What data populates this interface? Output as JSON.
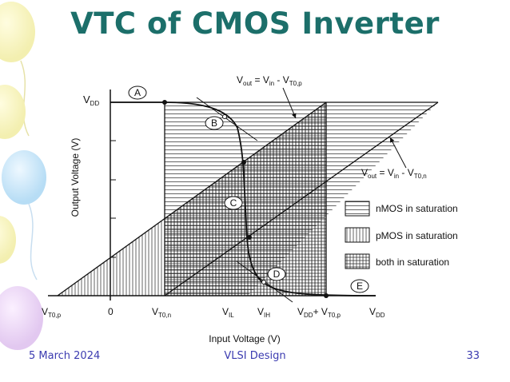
{
  "slide": {
    "title": "VTC of CMOS Inverter",
    "footer": {
      "date": "5 March 2024",
      "course": "VLSI Design",
      "page": "33"
    }
  },
  "diagram": {
    "y_axis_label": "Output Voltage  (V)",
    "x_axis_label": "Input Voltage  (V)",
    "vdd_label": "V",
    "vdd_sub": "DD",
    "x_ticks": [
      {
        "main": "V",
        "sub": "T0,p"
      },
      {
        "main": "0",
        "sub": ""
      },
      {
        "main": "V",
        "sub": "T0,n"
      },
      {
        "main": "V",
        "sub": "IL"
      },
      {
        "main": "V",
        "sub": "IH"
      },
      {
        "main": "V",
        "sub": "DD"
      },
      {
        "main": "+ V",
        "sub": "T0,p"
      },
      {
        "main": "V",
        "sub": "DD"
      }
    ],
    "points": [
      "A",
      "B",
      "C",
      "D",
      "E"
    ],
    "annotation_p": {
      "lhs": "V",
      "lhs_sub": "out",
      "mid": " = V",
      "mid_sub": "in",
      "rhs": " - V",
      "rhs_sub": "T0,p"
    },
    "annotation_n": {
      "lhs": "V",
      "lhs_sub": "out",
      "mid": " = V",
      "mid_sub": "in",
      "rhs": " - V",
      "rhs_sub": "T0,n"
    },
    "legend": [
      {
        "label": "nMOS in saturation",
        "pattern": "horizontal"
      },
      {
        "label": "pMOS in saturation",
        "pattern": "vertical"
      },
      {
        "label": "both in saturation",
        "pattern": "grid"
      }
    ]
  },
  "theme": {
    "title_color": "#1c6f6a",
    "footer_color": "#3b3bb0"
  }
}
